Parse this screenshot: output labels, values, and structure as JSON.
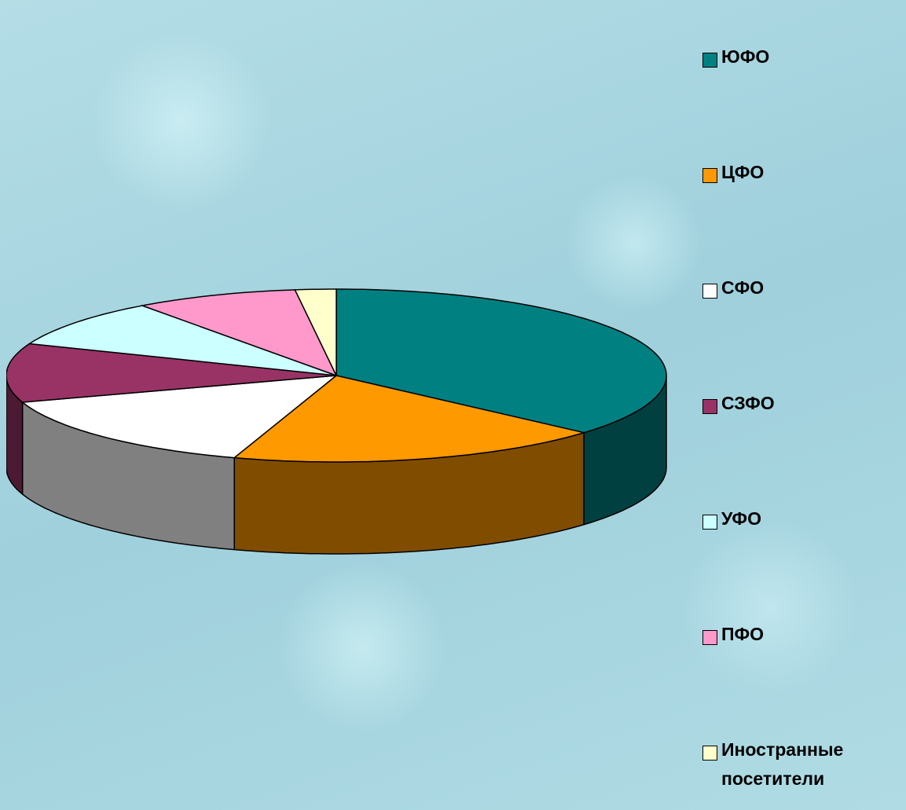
{
  "chart_data": {
    "type": "pie3d",
    "categories": [
      "ЮФО",
      "ЦФО",
      "СФО",
      "СЗФО",
      "УФО",
      "ПФО",
      "Иностранные посетители"
    ],
    "values": [
      36.5,
      18.5,
      15,
      11,
      9,
      8,
      2
    ],
    "colors": [
      "#008080",
      "#FF9900",
      "#FFFFFF",
      "#993366",
      "#CCFFFF",
      "#FF99CC",
      "#FFFFCC"
    ],
    "legend": "right"
  }
}
